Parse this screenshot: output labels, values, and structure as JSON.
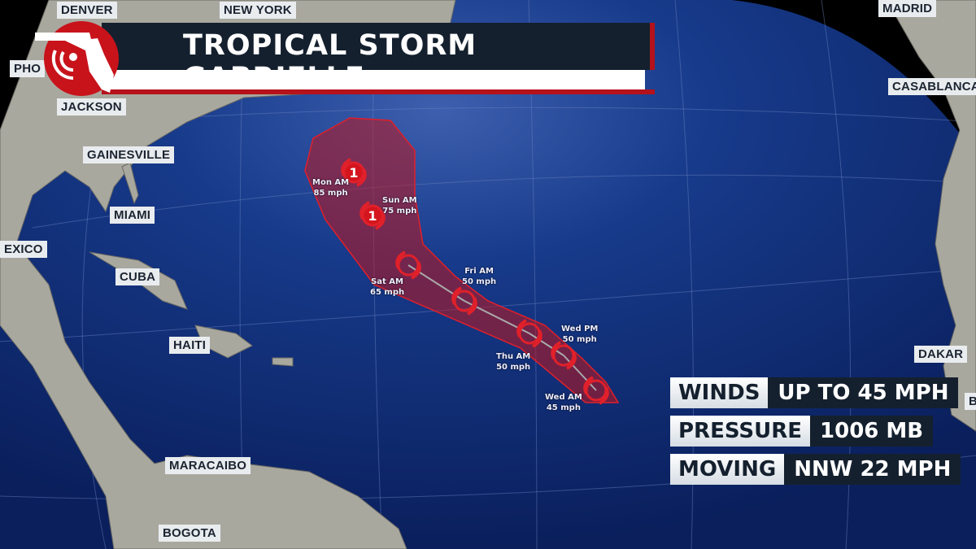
{
  "header": {
    "title": "TROPICAL STORM GABRIELLE",
    "logo_icon": "florida-radar-logo-icon"
  },
  "cities": [
    "DENVER",
    "NEW YORK",
    "MADRID",
    "PHO",
    "JACKSON",
    "CASABLANCA",
    "GAINESVILLE",
    "MIAMI",
    "EXICO",
    "CUBA",
    "HAITI",
    "DAKAR",
    "MARACAIBO",
    "BOGOTA",
    "B"
  ],
  "forecast_points": [
    {
      "time": "Wed AM",
      "wind": "45 mph",
      "category": ""
    },
    {
      "time": "Wed PM",
      "wind": "50 mph",
      "category": ""
    },
    {
      "time": "Thu AM",
      "wind": "50 mph",
      "category": ""
    },
    {
      "time": "Fri AM",
      "wind": "50 mph",
      "category": ""
    },
    {
      "time": "Sat AM",
      "wind": "65 mph",
      "category": ""
    },
    {
      "time": "Sun AM",
      "wind": "75 mph",
      "category": "1"
    },
    {
      "time": "Mon AM",
      "wind": "85 mph",
      "category": "1"
    }
  ],
  "stats": [
    {
      "label": "WINDS",
      "value": "UP TO 45 MPH"
    },
    {
      "label": "PRESSURE",
      "value": "1006 MB"
    },
    {
      "label": "MOVING",
      "value": "NNW 22 MPH"
    }
  ],
  "colors": {
    "ocean": "#0f2d78",
    "land": "#a9a89f",
    "cone": "#c0161c",
    "banner_dark": "#14202e",
    "accent_red": "#b5121b"
  }
}
